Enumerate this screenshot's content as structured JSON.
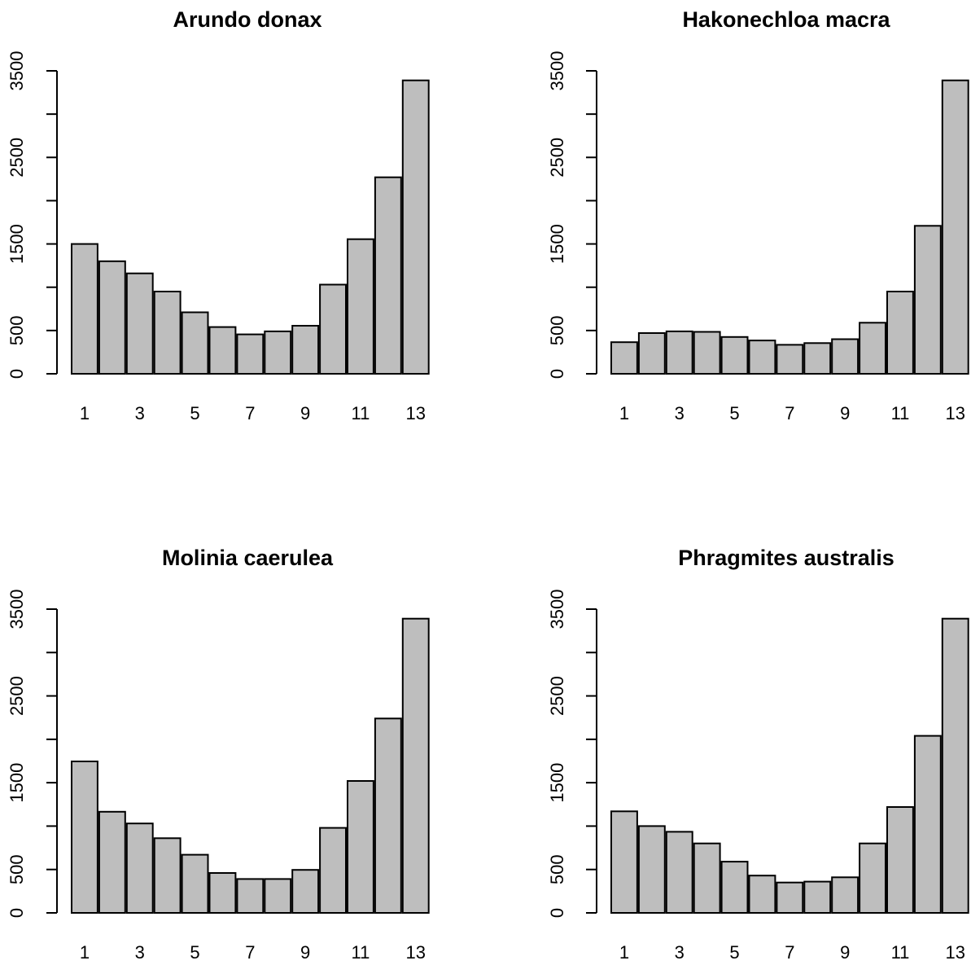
{
  "chart_data": [
    {
      "type": "bar",
      "title": "Arundo donax",
      "categories": [
        "1",
        "2",
        "3",
        "4",
        "5",
        "6",
        "7",
        "8",
        "9",
        "10",
        "11",
        "12",
        "13"
      ],
      "values": [
        1500,
        1300,
        1160,
        950,
        710,
        540,
        455,
        490,
        555,
        1030,
        1555,
        2270,
        3390
      ],
      "x_tick_labels": [
        "1",
        "3",
        "5",
        "7",
        "9",
        "11",
        "13"
      ],
      "y_ticks": [
        0,
        500,
        1000,
        1500,
        2000,
        2500,
        3000,
        3500
      ],
      "y_tick_labels": [
        "0",
        "500",
        "",
        "1500",
        "",
        "2500",
        "",
        "3500"
      ],
      "ylim": [
        0,
        3500
      ],
      "xlabel": "",
      "ylabel": "",
      "bar_color": "#bebebe"
    },
    {
      "type": "bar",
      "title": "Hakonechloa macra",
      "categories": [
        "1",
        "2",
        "3",
        "4",
        "5",
        "6",
        "7",
        "8",
        "9",
        "10",
        "11",
        "12",
        "13"
      ],
      "values": [
        365,
        470,
        490,
        485,
        425,
        385,
        335,
        355,
        400,
        590,
        950,
        1710,
        3390
      ],
      "x_tick_labels": [
        "1",
        "3",
        "5",
        "7",
        "9",
        "11",
        "13"
      ],
      "y_ticks": [
        0,
        500,
        1000,
        1500,
        2000,
        2500,
        3000,
        3500
      ],
      "y_tick_labels": [
        "0",
        "500",
        "",
        "1500",
        "",
        "2500",
        "",
        "3500"
      ],
      "ylim": [
        0,
        3500
      ],
      "xlabel": "",
      "ylabel": "",
      "bar_color": "#bebebe"
    },
    {
      "type": "bar",
      "title": "Molinia caerulea",
      "categories": [
        "1",
        "2",
        "3",
        "4",
        "5",
        "6",
        "7",
        "8",
        "9",
        "10",
        "11",
        "12",
        "13"
      ],
      "values": [
        1745,
        1165,
        1030,
        860,
        670,
        460,
        390,
        390,
        495,
        980,
        1520,
        2240,
        3390
      ],
      "x_tick_labels": [
        "1",
        "3",
        "5",
        "7",
        "9",
        "11",
        "13"
      ],
      "y_ticks": [
        0,
        500,
        1000,
        1500,
        2000,
        2500,
        3000,
        3500
      ],
      "y_tick_labels": [
        "0",
        "500",
        "",
        "1500",
        "",
        "2500",
        "",
        "3500"
      ],
      "ylim": [
        0,
        3500
      ],
      "xlabel": "",
      "ylabel": "",
      "bar_color": "#bebebe"
    },
    {
      "type": "bar",
      "title": "Phragmites australis",
      "categories": [
        "1",
        "2",
        "3",
        "4",
        "5",
        "6",
        "7",
        "8",
        "9",
        "10",
        "11",
        "12",
        "13"
      ],
      "values": [
        1170,
        1000,
        935,
        800,
        590,
        430,
        350,
        360,
        410,
        800,
        1220,
        2040,
        3390
      ],
      "x_tick_labels": [
        "1",
        "3",
        "5",
        "7",
        "9",
        "11",
        "13"
      ],
      "y_ticks": [
        0,
        500,
        1000,
        1500,
        2000,
        2500,
        3000,
        3500
      ],
      "y_tick_labels": [
        "0",
        "500",
        "",
        "1500",
        "",
        "2500",
        "",
        "3500"
      ],
      "ylim": [
        0,
        3500
      ],
      "xlabel": "",
      "ylabel": "",
      "bar_color": "#bebebe"
    }
  ]
}
